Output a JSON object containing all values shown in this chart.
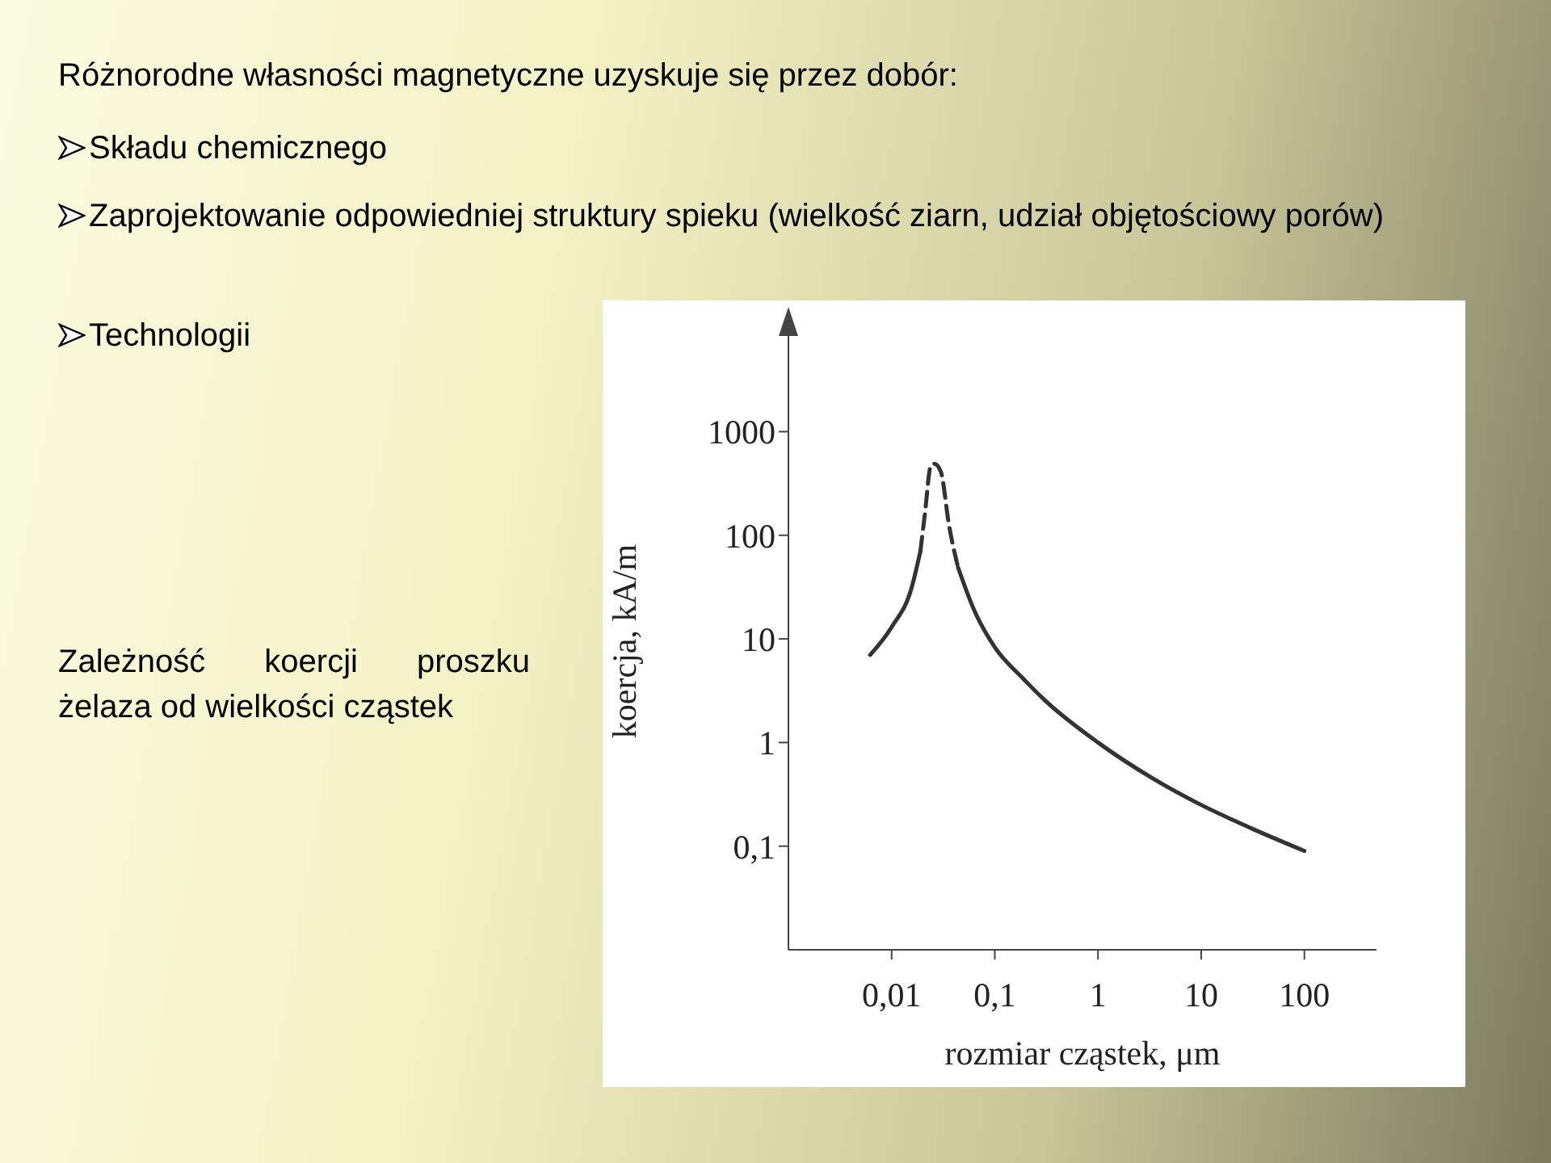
{
  "chart_data": {
    "type": "line",
    "title": "Różnorodne własności magnetyczne uzyskuje się przez dobór:",
    "annotations": [
      "Składu chemicznego",
      "Zaprojektowanie odpowiedniej struktury spieku (wielkość ziarn, udział objętościowy porów)",
      "Technologii",
      "Zależność koercji proszku żelaza od wielkości cząstek"
    ],
    "xlabel": "rozmiar cząstek, μm",
    "ylabel": "koercja, kA/m",
    "series": [
      {
        "color": "#333333",
        "line_style": "solid",
        "x": [
          0.0062,
          0.01,
          0.0156,
          0.019
        ],
        "values": [
          7,
          13,
          31,
          70
        ]
      },
      {
        "color": "#333333",
        "line_style": "dashed",
        "x": [
          0.019,
          0.021,
          0.024,
          0.026,
          0.03,
          0.036,
          0.044
        ],
        "values": [
          70,
          160,
          470,
          490,
          410,
          125,
          49
        ]
      },
      {
        "color": "#333333",
        "line_style": "solid",
        "x": [
          0.044,
          0.063,
          0.1,
          0.19,
          0.3,
          1,
          3.4,
          10,
          30,
          100
        ],
        "values": [
          49,
          19,
          8.3,
          4.1,
          2.6,
          1,
          0.45,
          0.25,
          0.15,
          0.09
        ]
      }
    ],
    "log": "xy",
    "grid": false,
    "marker": "none",
    "xlim": [
      0.001,
      500
    ],
    "ylim": [
      0.01,
      9000
    ],
    "xticks": [
      {
        "value": 0.01,
        "label": "0,01"
      },
      {
        "value": 0.1,
        "label": "0,1"
      },
      1,
      10,
      100
    ],
    "yticks": [
      {
        "value": 0.1,
        "label": "0,1"
      },
      1,
      10,
      100,
      1000
    ]
  }
}
